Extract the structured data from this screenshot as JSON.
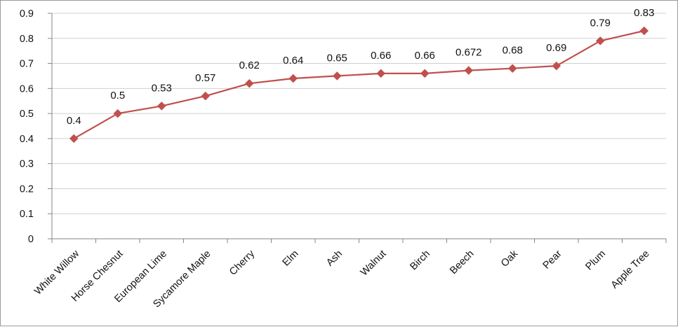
{
  "chart_data": {
    "type": "line",
    "categories": [
      "White Willow",
      "Horse Chesnut",
      "European Lime",
      "Sycamore Maple",
      "Cherry",
      "Elm",
      "Ash",
      "Walnut",
      "Birch",
      "Beech",
      "Oak",
      "Pear",
      "Plum",
      "Apple Tree"
    ],
    "series": [
      {
        "values": [
          0.4,
          0.5,
          0.53,
          0.57,
          0.62,
          0.64,
          0.65,
          0.66,
          0.66,
          0.672,
          0.68,
          0.69,
          0.79,
          0.83
        ]
      }
    ],
    "data_labels": [
      "0.4",
      "0.5",
      "0.53",
      "0.57",
      "0.62",
      "0.64",
      "0.65",
      "0.66",
      "0.66",
      "0.672",
      "0.68",
      "0.69",
      "0.79",
      "0.83"
    ],
    "y_ticks": [
      "0",
      "0.1",
      "0.2",
      "0.3",
      "0.4",
      "0.5",
      "0.6",
      "0.7",
      "0.8",
      "0.9"
    ],
    "ylim": [
      0,
      0.9
    ],
    "grid": true,
    "legend": "none",
    "title": "",
    "xlabel": "",
    "ylabel": "",
    "colors": {
      "line": "#c0504d",
      "marker": "#c0504d",
      "grid": "#d0d0d0",
      "axis": "#868686"
    }
  }
}
